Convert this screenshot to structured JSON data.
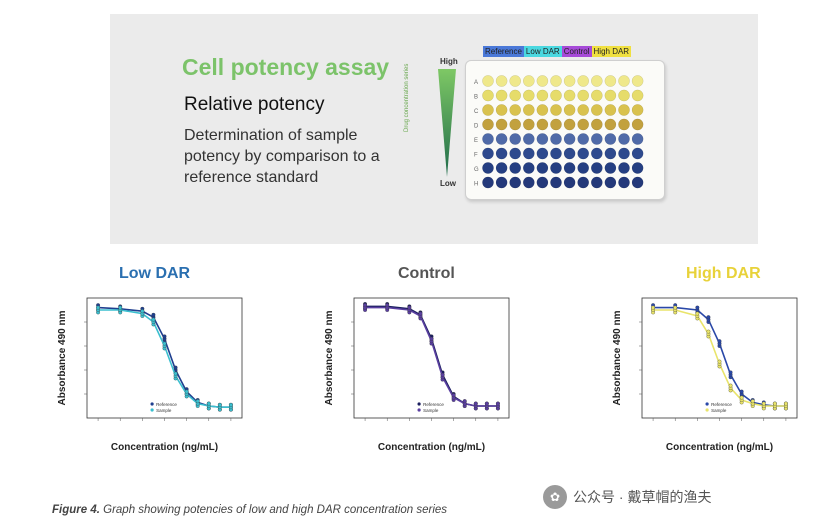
{
  "banner": {
    "title": "Cell potency assay",
    "subtitle": "Relative potency",
    "description": "Determination of sample potency by comparison to a reference standard",
    "gradient_high": "High",
    "gradient_low": "Low",
    "gradient_axis": "Drug concentration series",
    "plate": {
      "legend": [
        {
          "label": "Reference",
          "color": "#4a78d8"
        },
        {
          "label": "Low DAR",
          "color": "#4ad8e0"
        },
        {
          "label": "Control",
          "color": "#a64ad8"
        },
        {
          "label": "High DAR",
          "color": "#f0e040"
        }
      ],
      "rows": [
        "A",
        "B",
        "C",
        "D",
        "E",
        "F",
        "G",
        "H"
      ],
      "row_colors": [
        "#efe88a",
        "#e6dc6a",
        "#d9c24e",
        "#c2a13e",
        "#4f6aa8",
        "#2e4a8e",
        "#253f82",
        "#24397a"
      ]
    }
  },
  "charts": {
    "xlabel": "Concentration (ng/mL)",
    "ylabel": "Absorbance 490 nm",
    "panels": [
      {
        "title": "Low DAR",
        "title_color": "#2a6fb0",
        "series_color_a": "#1f3f8f",
        "series_color_b": "#3bbfcf"
      },
      {
        "title": "Control",
        "title_color": "#555555",
        "series_color_a": "#1b1f5f",
        "series_color_b": "#5a3fa0"
      },
      {
        "title": "High DAR",
        "title_color": "#e8d23a",
        "series_color_a": "#2a48a8",
        "series_color_b": "#e9e46a"
      }
    ]
  },
  "chart_data": [
    {
      "type": "scatter",
      "title": "Low DAR",
      "xlabel": "Concentration (ng/mL)",
      "ylabel": "Absorbance 490 nm",
      "x": [
        -4,
        -3,
        -2,
        -1.5,
        -1,
        -0.5,
        0,
        0.5,
        1,
        1.5,
        2
      ],
      "series": [
        {
          "name": "Reference",
          "values": [
            0.92,
            0.91,
            0.89,
            0.84,
            0.66,
            0.4,
            0.22,
            0.13,
            0.1,
            0.09,
            0.09
          ]
        },
        {
          "name": "Sample",
          "values": [
            0.9,
            0.9,
            0.87,
            0.8,
            0.6,
            0.35,
            0.2,
            0.12,
            0.1,
            0.09,
            0.09
          ]
        }
      ]
    },
    {
      "type": "scatter",
      "title": "Control",
      "xlabel": "Concentration (ng/mL)",
      "ylabel": "Absorbance 490 nm",
      "x": [
        -4,
        -3,
        -2,
        -1.5,
        -1,
        -0.5,
        0,
        0.5,
        1,
        1.5,
        2
      ],
      "series": [
        {
          "name": "Reference",
          "values": [
            0.93,
            0.93,
            0.91,
            0.86,
            0.66,
            0.36,
            0.18,
            0.12,
            0.1,
            0.1,
            0.1
          ]
        },
        {
          "name": "Sample",
          "values": [
            0.92,
            0.92,
            0.9,
            0.85,
            0.64,
            0.34,
            0.17,
            0.12,
            0.1,
            0.1,
            0.1
          ]
        }
      ]
    },
    {
      "type": "scatter",
      "title": "High DAR",
      "xlabel": "Concentration (ng/mL)",
      "ylabel": "Absorbance 490 nm",
      "x": [
        -4,
        -3,
        -2,
        -1.5,
        -1,
        -0.5,
        0,
        0.5,
        1,
        1.5,
        2
      ],
      "series": [
        {
          "name": "Reference",
          "values": [
            0.92,
            0.92,
            0.9,
            0.82,
            0.62,
            0.36,
            0.2,
            0.13,
            0.11,
            0.1,
            0.1
          ]
        },
        {
          "name": "Sample",
          "values": [
            0.9,
            0.9,
            0.85,
            0.7,
            0.45,
            0.25,
            0.15,
            0.12,
            0.1,
            0.1,
            0.1
          ]
        }
      ]
    }
  ],
  "caption": {
    "label": "Figure 4.",
    "text": " Graph showing potencies of low and high DAR concentration series"
  },
  "watermark": "公众号 · 戴草帽的渔夫"
}
